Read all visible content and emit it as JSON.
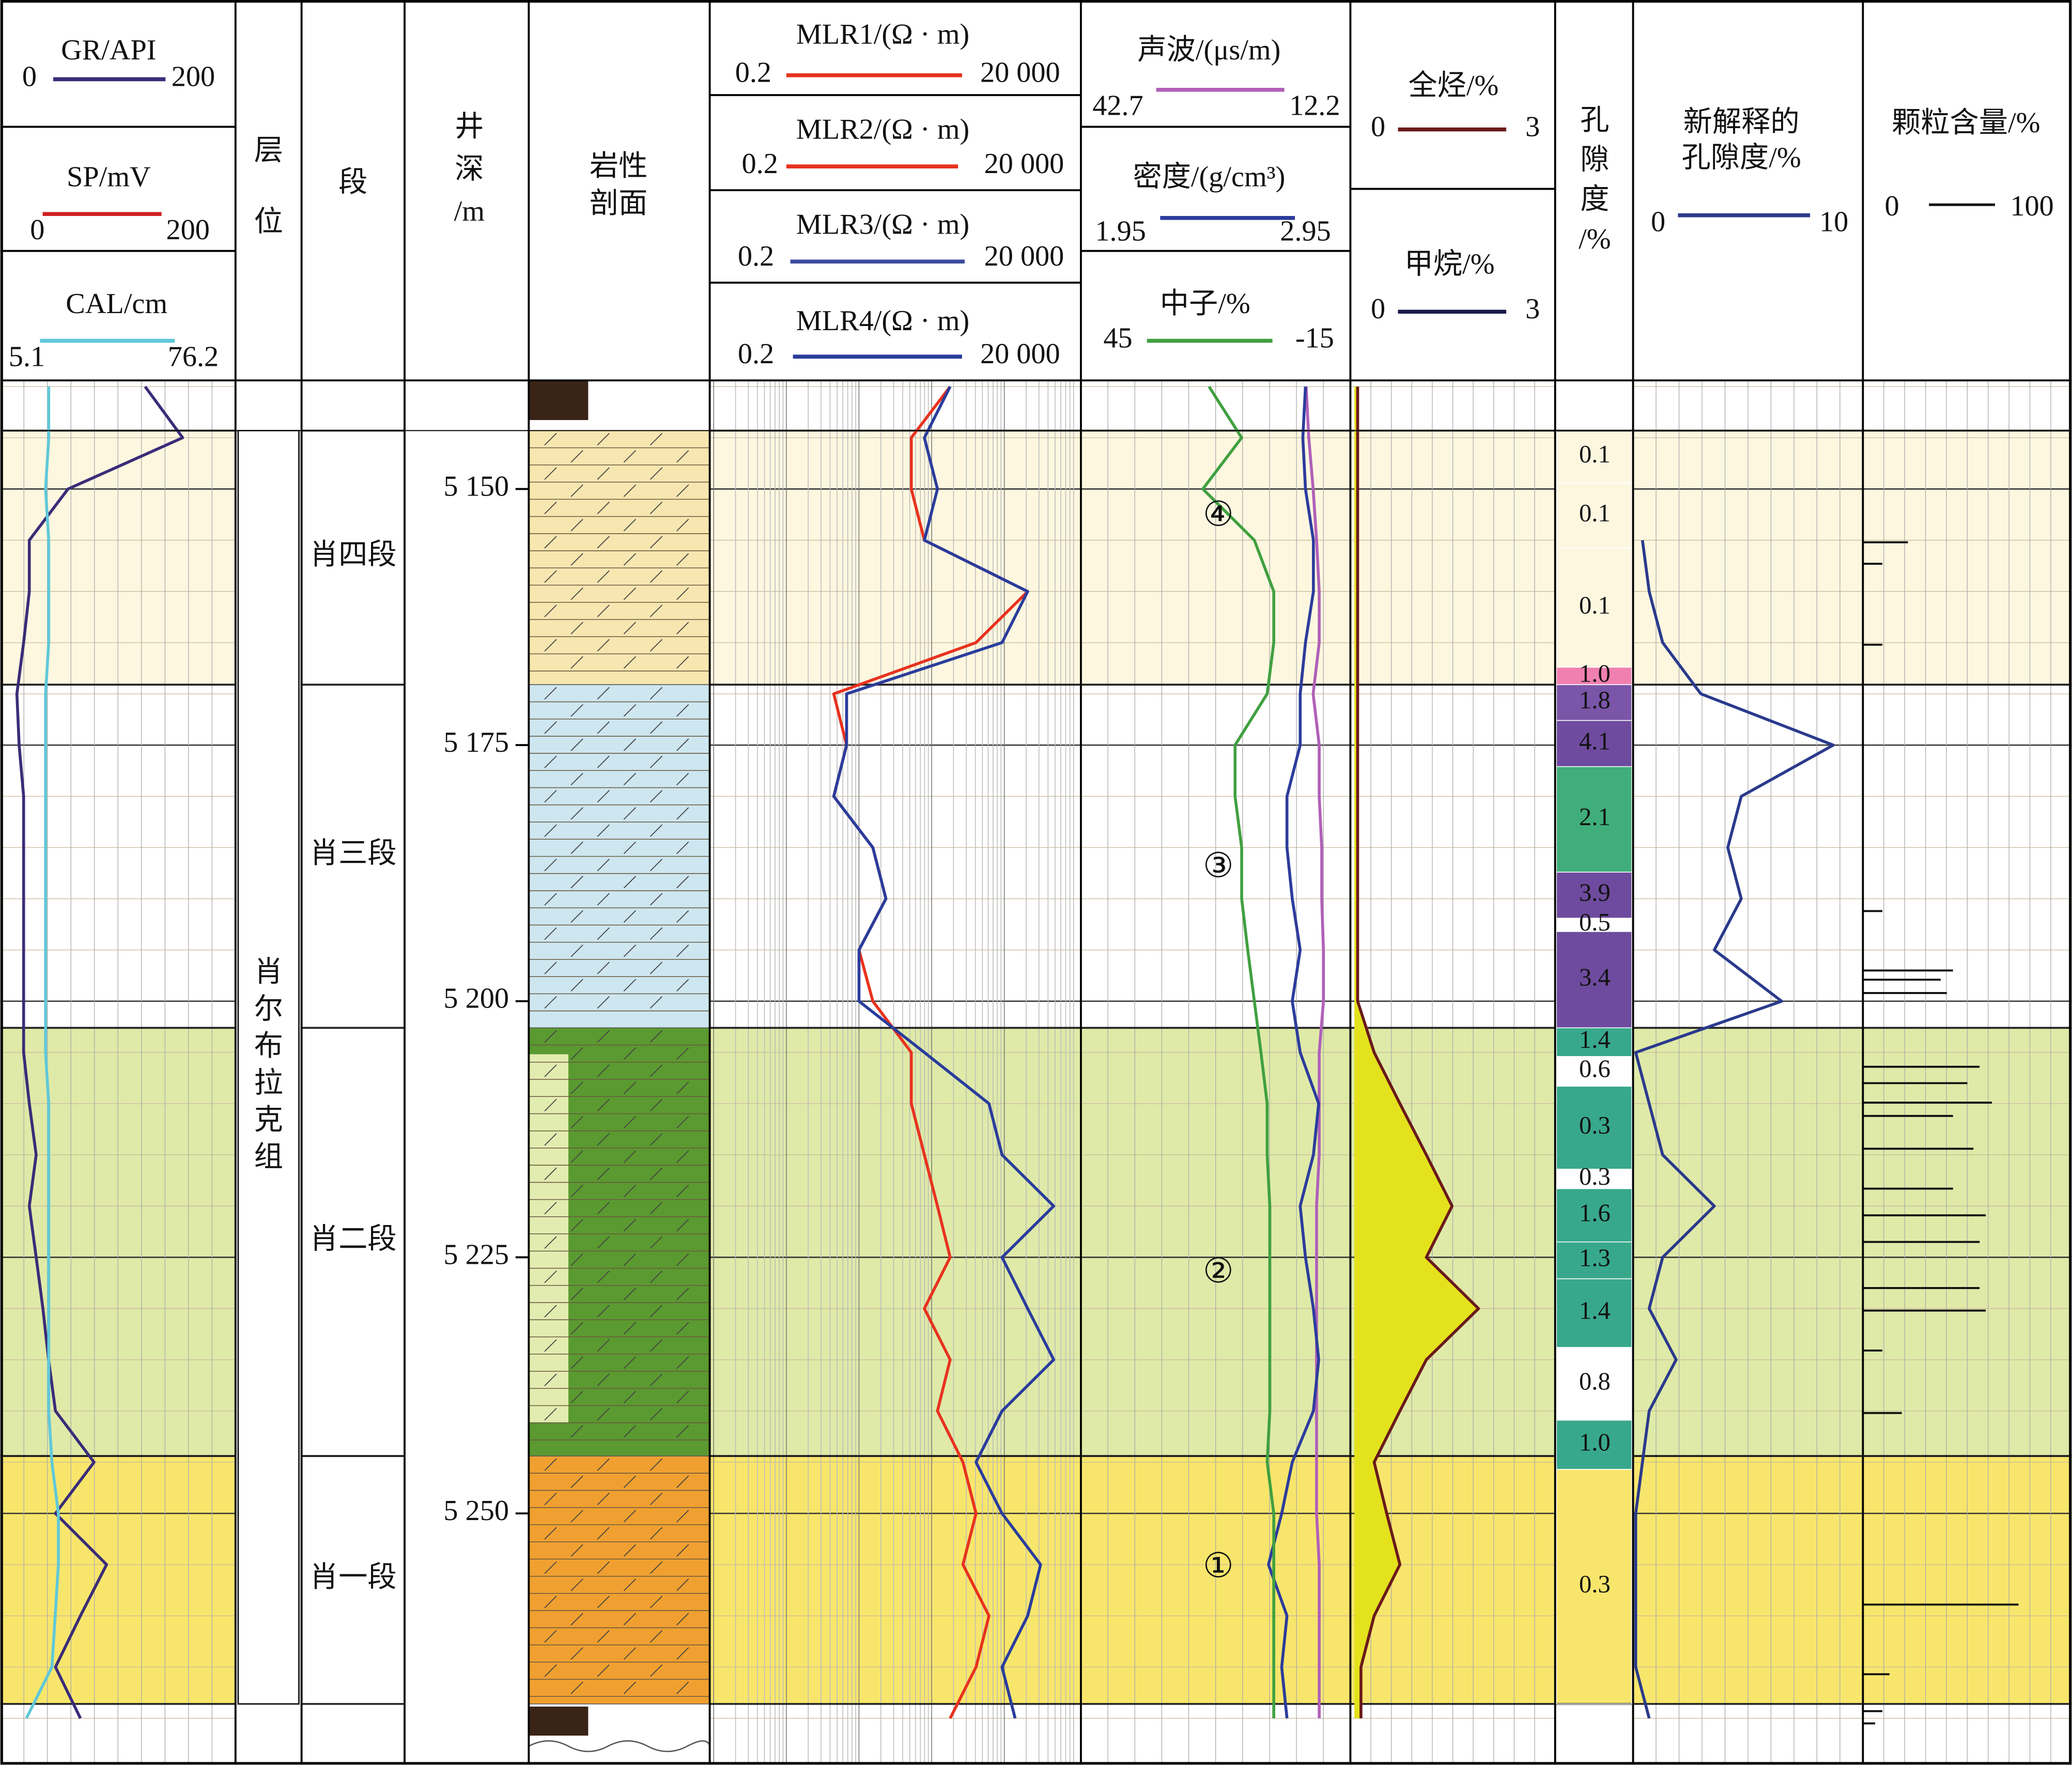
{
  "chart_data": {
    "type": "well-log",
    "depth_header": "井深/m",
    "formation_header": "层位",
    "zone_header": "段",
    "lithology_header": "岩性剖面",
    "porosity_header": "孔隙度/%",
    "formation": "肖尔布拉克组",
    "depth_lim": [
      5139.4,
      5274.4
    ],
    "yticks": [
      {
        "value": 5150,
        "label": "5 150"
      },
      {
        "value": 5175,
        "label": "5 175"
      },
      {
        "value": 5200,
        "label": "5 200"
      },
      {
        "value": 5225,
        "label": "5 225"
      },
      {
        "value": 5250,
        "label": "5 250"
      }
    ],
    "depth": [
      5140,
      5145,
      5150,
      5155,
      5160,
      5165,
      5170,
      5175,
      5180,
      5185,
      5190,
      5195,
      5200,
      5205,
      5210,
      5215,
      5220,
      5225,
      5230,
      5235,
      5240,
      5245,
      5250,
      5255,
      5260,
      5265,
      5270
    ],
    "zones": {
      "names": [
        "肖四段",
        "肖三段",
        "肖二段",
        "肖一段"
      ],
      "tops": [
        5144.3,
        5169.1,
        5202.6,
        5244.4
      ],
      "bases": [
        5169.1,
        5202.6,
        5244.4,
        5268.6
      ],
      "colors": [
        "#fdf7e0",
        "#ffffff",
        "#dfeaa8",
        "#f8e66c"
      ]
    },
    "annotations": [
      "④",
      "③",
      "②",
      "①"
    ],
    "curves": [
      {
        "name": "GR/API",
        "color": "#3a2c78",
        "xlim": [
          0,
          200
        ],
        "values": [
          124,
          157,
          56,
          22,
          22,
          17,
          11,
          13,
          17,
          17,
          17,
          17,
          17,
          17,
          22,
          28,
          22,
          28,
          34,
          39,
          45,
          79,
          45,
          90,
          67,
          45,
          67
        ]
      },
      {
        "name": "SP/mV",
        "color": "#d02020",
        "xlim": [
          0,
          200
        ]
      },
      {
        "name": "CAL/cm",
        "color": "#60c8d8",
        "xlim": [
          5.1,
          76.2
        ],
        "values": [
          19,
          19,
          18,
          19,
          19,
          19,
          18,
          18,
          18,
          18,
          18,
          18,
          18,
          18,
          19,
          19,
          19,
          19,
          19,
          19,
          19,
          20,
          22,
          22,
          21,
          20,
          12
        ]
      },
      {
        "name": "MLR1/(Ω · m)",
        "color": "#e8321e",
        "log": true,
        "xlim": [
          0.2,
          {
            "value": 20000,
            "label": "20 000"
          }
        ],
        "values": [
          360,
          105,
          105,
          159,
          4200,
          815,
          9,
          13.5,
          9,
          31,
          47,
          20,
          31,
          105,
          105,
          159,
          240,
          360,
          159,
          360,
          240,
          540,
          815,
          540,
          1230,
          815,
          360
        ]
      },
      {
        "name": "MLR2/(Ω · m)",
        "color": "#e8321e",
        "log": true,
        "xlim": [
          0.2,
          {
            "value": 20000,
            "label": "20 000"
          }
        ]
      },
      {
        "name": "MLR3/(Ω · m)",
        "color": "#3c4a9c",
        "log": true,
        "xlim": [
          0.2,
          {
            "value": 20000,
            "label": "20 000"
          }
        ]
      },
      {
        "name": "MLR4/(Ω · m)",
        "color": "#2a3c9c",
        "log": true,
        "xlim": [
          0.2,
          {
            "value": 20000,
            "label": "20 000"
          }
        ],
        "values": [
          360,
          159,
          240,
          159,
          4200,
          1866,
          13.5,
          13.5,
          9,
          31,
          47,
          20,
          20,
          159,
          1230,
          1866,
          9570,
          1866,
          4200,
          9570,
          1866,
          815,
          1866,
          6325,
          4200,
          1866,
          2825
        ]
      },
      {
        "name": "声波/(μs/m)",
        "color": "#b060b8",
        "xlim": [
          42.7,
          12.2
        ],
        "values": [
          17.0,
          16.7,
          16.2,
          15.8,
          15.5,
          15.5,
          16.2,
          15.5,
          15.5,
          15.2,
          15.2,
          15.0,
          15.0,
          15.5,
          15.5,
          15.5,
          15.8,
          15.8,
          15.8,
          15.8,
          15.8,
          15.8,
          15.8,
          15.5,
          15.5,
          15.5,
          15.5
        ]
      },
      {
        "name": "密度/(g/cm³)",
        "color": "#2c3c9c",
        "xlim": [
          1.95,
          2.95
        ],
        "values": [
          2.79,
          2.78,
          2.79,
          2.82,
          2.82,
          2.79,
          2.77,
          2.77,
          2.72,
          2.72,
          2.74,
          2.77,
          2.74,
          2.77,
          2.84,
          2.82,
          2.77,
          2.79,
          2.82,
          2.84,
          2.82,
          2.74,
          2.7,
          2.65,
          2.72,
          2.7,
          2.72
        ]
      },
      {
        "name": "中子/%",
        "color": "#40a040",
        "xlim": [
          45,
          -15
        ],
        "values": [
          16.5,
          9.1,
          17.9,
          6.2,
          1.8,
          1.8,
          3.3,
          10.6,
          10.6,
          9.1,
          9.1,
          7.7,
          6.2,
          4.7,
          3.3,
          3.3,
          2.7,
          2.7,
          2.7,
          2.7,
          2.7,
          3.3,
          1.8,
          1.8,
          1.8,
          1.8,
          1.8
        ]
      },
      {
        "name": "全烃/%",
        "color": "#6a1a1a",
        "fill": "#e4e21c",
        "xlim": [
          0,
          3
        ],
        "values": [
          0.05,
          0.05,
          0.05,
          0.05,
          0.05,
          0.05,
          0.05,
          0.05,
          0.05,
          0.05,
          0.05,
          0.05,
          0.05,
          0.3,
          0.69,
          1.09,
          1.48,
          1.09,
          1.88,
          1.09,
          0.69,
          0.3,
          0.49,
          0.69,
          0.3,
          0.1,
          0.1
        ]
      },
      {
        "name": "甲烷/%",
        "color": "#1a1a4a",
        "xlim": [
          0,
          3
        ]
      },
      {
        "name": "新解释的孔隙度/%",
        "color": "#2a3a8c",
        "xlim": [
          0,
          10
        ],
        "values": [
          null,
          null,
          null,
          0.3,
          0.6,
          1.2,
          2.9,
          8.8,
          4.7,
          4.1,
          4.7,
          3.5,
          6.5,
          0,
          0.6,
          1.2,
          3.5,
          1.2,
          0.6,
          1.8,
          0.6,
          0.3,
          0,
          0,
          0,
          0,
          0.6
        ]
      }
    ],
    "porosity": {
      "values": [
        0.1,
        0.1,
        0.1,
        1.0,
        1.8,
        4.1,
        2.1,
        3.9,
        0.5,
        3.4,
        1.4,
        0.6,
        0.3,
        0.3,
        1.6,
        1.3,
        1.4,
        0.8,
        1.0,
        0.3
      ],
      "value_labels": [
        "0.1",
        "0.1",
        "0.1",
        "1.0",
        "1.8",
        "4.1",
        "2.1",
        "3.9",
        "0.5",
        "3.4",
        "1.4",
        "0.6",
        "0.3",
        "0.3",
        "1.6",
        "1.3",
        "1.4",
        "0.8",
        "1.0",
        "0.3"
      ],
      "tops": [
        5144.3,
        5149.4,
        5155.8,
        5167.4,
        5169.1,
        5172.6,
        5177.1,
        5187.4,
        5191.9,
        5193.2,
        5202.6,
        5205.4,
        5208.3,
        5216.4,
        5218.3,
        5223.5,
        5227.1,
        5233.8,
        5240.9,
        5245.7
      ],
      "bases": [
        5149.4,
        5155.8,
        5167.4,
        5169.1,
        5172.6,
        5177.1,
        5187.4,
        5191.9,
        5193.2,
        5202.6,
        5205.4,
        5208.3,
        5216.4,
        5218.3,
        5223.5,
        5227.1,
        5233.8,
        5240.9,
        5245.7,
        5268.6
      ],
      "colors": [
        "none",
        "none",
        "none",
        "#f080b0",
        "#7a55a8",
        "#6e4b9e",
        "#3fae7a",
        "#6e4b9e",
        "#ffffff",
        "#6e4b9e",
        "#38a88c",
        "#ffffff",
        "#38a88c",
        "#ffffff",
        "#38a88c",
        "#38a88c",
        "#38a88c",
        "#ffffff",
        "#38a88c",
        "none"
      ]
    },
    "grain_content": {
      "name": "颗粒含量/%",
      "color": "#111111",
      "xlim": [
        0,
        100
      ],
      "depths": [
        5155.2,
        5157.3,
        5165.2,
        5191.2,
        5197.0,
        5197.9,
        5199.2,
        5206.4,
        5208.0,
        5209.9,
        5211.2,
        5214.4,
        5218.3,
        5220.9,
        5223.5,
        5228.0,
        5230.2,
        5234.1,
        5240.2,
        5258.9,
        5265.7,
        5269.3,
        5270.5
      ],
      "values": [
        22,
        9.5,
        9.5,
        9.5,
        44,
        38,
        41,
        57,
        51,
        63,
        44,
        54,
        44,
        60,
        57,
        57,
        60,
        9.5,
        19,
        76,
        13,
        9.5,
        6
      ]
    }
  }
}
